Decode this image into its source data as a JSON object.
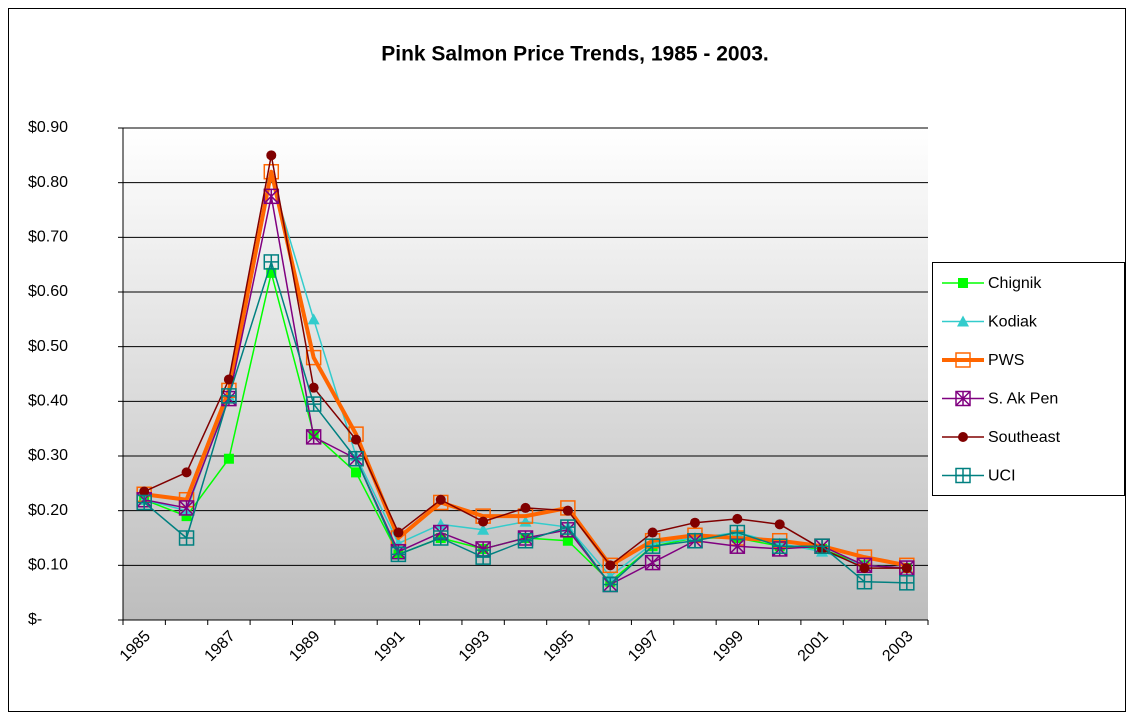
{
  "chart_data": {
    "type": "line",
    "title": "Pink Salmon Price Trends, 1985 - 2003.",
    "categories": [
      "1985",
      null,
      "1987",
      null,
      "1989",
      null,
      "1991",
      null,
      "1993",
      null,
      "1995",
      null,
      "1997",
      null,
      "1999",
      null,
      "2001",
      null,
      "2003"
    ],
    "ylim": [
      0,
      0.9
    ],
    "yticks": [
      {
        "value": 0,
        "label": "$-"
      },
      {
        "value": 0.1,
        "label": "$0.10"
      },
      {
        "value": 0.2,
        "label": "$0.20"
      },
      {
        "value": 0.3,
        "label": "$0.30"
      },
      {
        "value": 0.4,
        "label": "$0.40"
      },
      {
        "value": 0.5,
        "label": "$0.50"
      },
      {
        "value": 0.6,
        "label": "$0.60"
      },
      {
        "value": 0.7,
        "label": "$0.70"
      },
      {
        "value": 0.8,
        "label": "$0.80"
      },
      {
        "value": 0.9,
        "label": "$0.90"
      }
    ],
    "grid": true,
    "legend": "right",
    "series": [
      {
        "name": "Chignik",
        "color": "#00ff00",
        "marker": "square",
        "values": [
          0.22,
          0.19,
          0.295,
          0.635,
          0.34,
          0.27,
          0.12,
          0.15,
          0.13,
          0.15,
          0.145,
          0.07,
          0.135,
          0.15,
          0.15,
          0.135,
          0.13,
          0.1,
          0.095
        ]
      },
      {
        "name": "Kodiak",
        "color": "#33cccc",
        "marker": "triangle",
        "values": [
          0.22,
          0.2,
          0.41,
          0.81,
          0.55,
          0.3,
          0.14,
          0.175,
          0.165,
          0.18,
          0.17,
          0.08,
          0.14,
          0.15,
          0.16,
          0.14,
          0.125,
          0.1,
          0.095
        ]
      },
      {
        "name": "PWS",
        "color": "#ff6600",
        "marker": "open-square",
        "width": 4,
        "values": [
          0.23,
          0.22,
          0.42,
          0.82,
          0.48,
          0.34,
          0.15,
          0.215,
          0.19,
          0.19,
          0.205,
          0.1,
          0.145,
          0.155,
          0.15,
          0.145,
          0.135,
          0.115,
          0.1
        ]
      },
      {
        "name": "S. Ak Pen",
        "color": "#800080",
        "marker": "star-square",
        "values": [
          0.22,
          0.205,
          0.405,
          0.775,
          0.335,
          0.295,
          0.125,
          0.16,
          0.13,
          0.15,
          0.165,
          0.065,
          0.105,
          0.145,
          0.135,
          0.13,
          0.135,
          0.1,
          0.095
        ]
      },
      {
        "name": "Southeast",
        "color": "#800000",
        "marker": "circle",
        "values": [
          0.235,
          0.27,
          0.44,
          0.85,
          0.425,
          0.33,
          0.16,
          0.22,
          0.18,
          0.205,
          0.2,
          0.1,
          0.16,
          0.178,
          0.185,
          0.175,
          0.13,
          0.095,
          0.095
        ]
      },
      {
        "name": "UCI",
        "color": "#008080",
        "marker": "plus-square",
        "values": [
          0.215,
          0.15,
          0.41,
          0.655,
          0.395,
          0.295,
          0.12,
          0.15,
          0.115,
          0.145,
          0.17,
          0.065,
          0.135,
          0.145,
          0.16,
          0.135,
          0.135,
          0.07,
          0.068
        ]
      }
    ]
  }
}
